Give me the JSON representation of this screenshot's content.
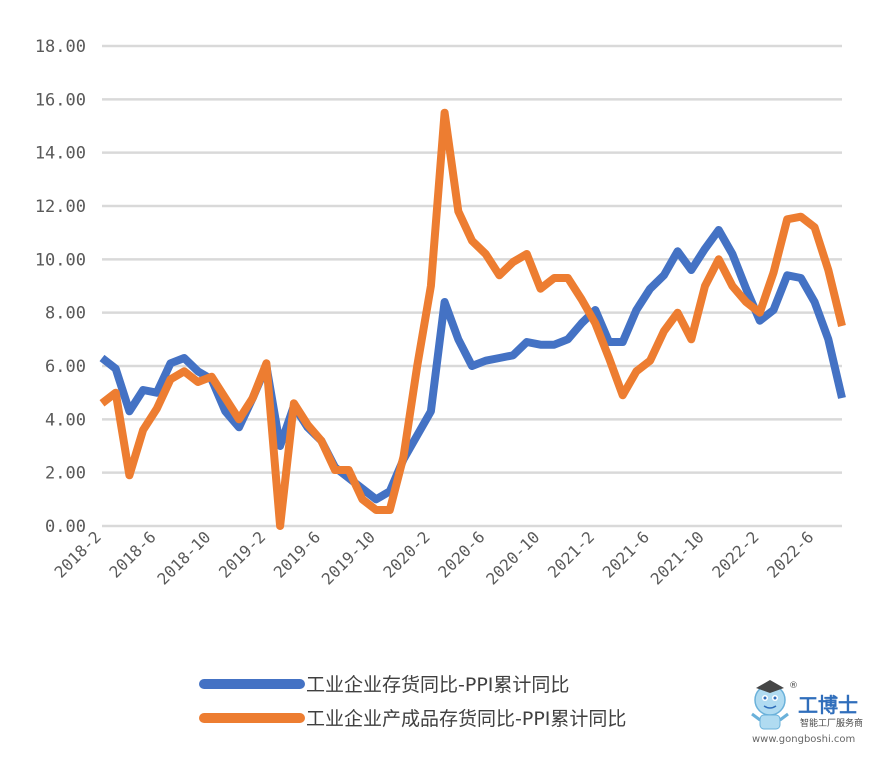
{
  "chart_data": {
    "type": "line",
    "title": "",
    "xlabel": "",
    "ylabel": "",
    "ylim": [
      0,
      18
    ],
    "yticks": [
      "0.00",
      "2.00",
      "4.00",
      "6.00",
      "8.00",
      "10.00",
      "12.00",
      "14.00",
      "16.00",
      "18.00"
    ],
    "grid": "horizontal",
    "legend_position": "bottom",
    "x": [
      "2018-2",
      "2018-3",
      "2018-4",
      "2018-5",
      "2018-6",
      "2018-7",
      "2018-8",
      "2018-9",
      "2018-10",
      "2018-11",
      "2018-12",
      "2019-1",
      "2019-2",
      "2019-3",
      "2019-4",
      "2019-5",
      "2019-6",
      "2019-7",
      "2019-8",
      "2019-9",
      "2019-10",
      "2019-11",
      "2019-12",
      "2020-1",
      "2020-2",
      "2020-3",
      "2020-4",
      "2020-5",
      "2020-6",
      "2020-7",
      "2020-8",
      "2020-9",
      "2020-10",
      "2020-11",
      "2020-12",
      "2021-1",
      "2021-2",
      "2021-3",
      "2021-4",
      "2021-5",
      "2021-6",
      "2021-7",
      "2021-8",
      "2021-9",
      "2021-10",
      "2021-11",
      "2021-12",
      "2022-1",
      "2022-2",
      "2022-3",
      "2022-4",
      "2022-5",
      "2022-6",
      "2022-7",
      "2022-8"
    ],
    "xtick_labels": [
      "2018-2",
      "2018-6",
      "2018-10",
      "2019-2",
      "2019-6",
      "2019-10",
      "2020-2",
      "2020-6",
      "2020-10",
      "2021-2",
      "2021-6",
      "2021-10",
      "2022-2",
      "2022-6"
    ],
    "series": [
      {
        "name": "工业企业存货同比-PPI累计同比",
        "color": "#4472c4",
        "values": [
          6.3,
          5.9,
          4.3,
          5.1,
          5.0,
          6.1,
          6.3,
          5.8,
          5.5,
          4.3,
          3.7,
          4.8,
          6.0,
          3.0,
          4.5,
          3.7,
          3.2,
          2.2,
          1.8,
          1.4,
          1.0,
          1.3,
          2.5,
          3.4,
          4.3,
          8.4,
          7.0,
          6.0,
          6.2,
          6.3,
          6.4,
          6.9,
          6.8,
          6.8,
          7.0,
          7.6,
          8.1,
          6.9,
          6.9,
          8.1,
          8.9,
          9.4,
          10.3,
          9.6,
          10.4,
          11.1,
          10.2,
          8.9,
          7.7,
          8.1,
          9.4,
          9.3,
          8.4,
          7.0,
          4.8
        ]
      },
      {
        "name": "工业企业产成品存货同比-PPI累计同比",
        "color": "#ed7d31",
        "values": [
          4.6,
          5.0,
          1.9,
          3.6,
          4.4,
          5.5,
          5.8,
          5.4,
          5.6,
          4.8,
          4.0,
          4.8,
          6.1,
          0.0,
          4.6,
          3.8,
          3.2,
          2.1,
          2.1,
          1.0,
          0.6,
          0.6,
          2.6,
          6.0,
          9.0,
          15.5,
          11.8,
          10.7,
          10.2,
          9.4,
          9.9,
          10.2,
          8.9,
          9.3,
          9.3,
          8.5,
          7.6,
          6.3,
          4.9,
          5.8,
          6.2,
          7.3,
          8.0,
          7.0,
          9.0,
          10.0,
          9.0,
          8.4,
          8.0,
          9.5,
          11.5,
          11.6,
          11.2,
          9.6,
          7.5
        ]
      }
    ]
  },
  "watermark": {
    "brand_title": "工博士",
    "brand_subtitle": "智能工厂服务商",
    "brand_url": "www.gongboshi.com",
    "mark": "®"
  }
}
